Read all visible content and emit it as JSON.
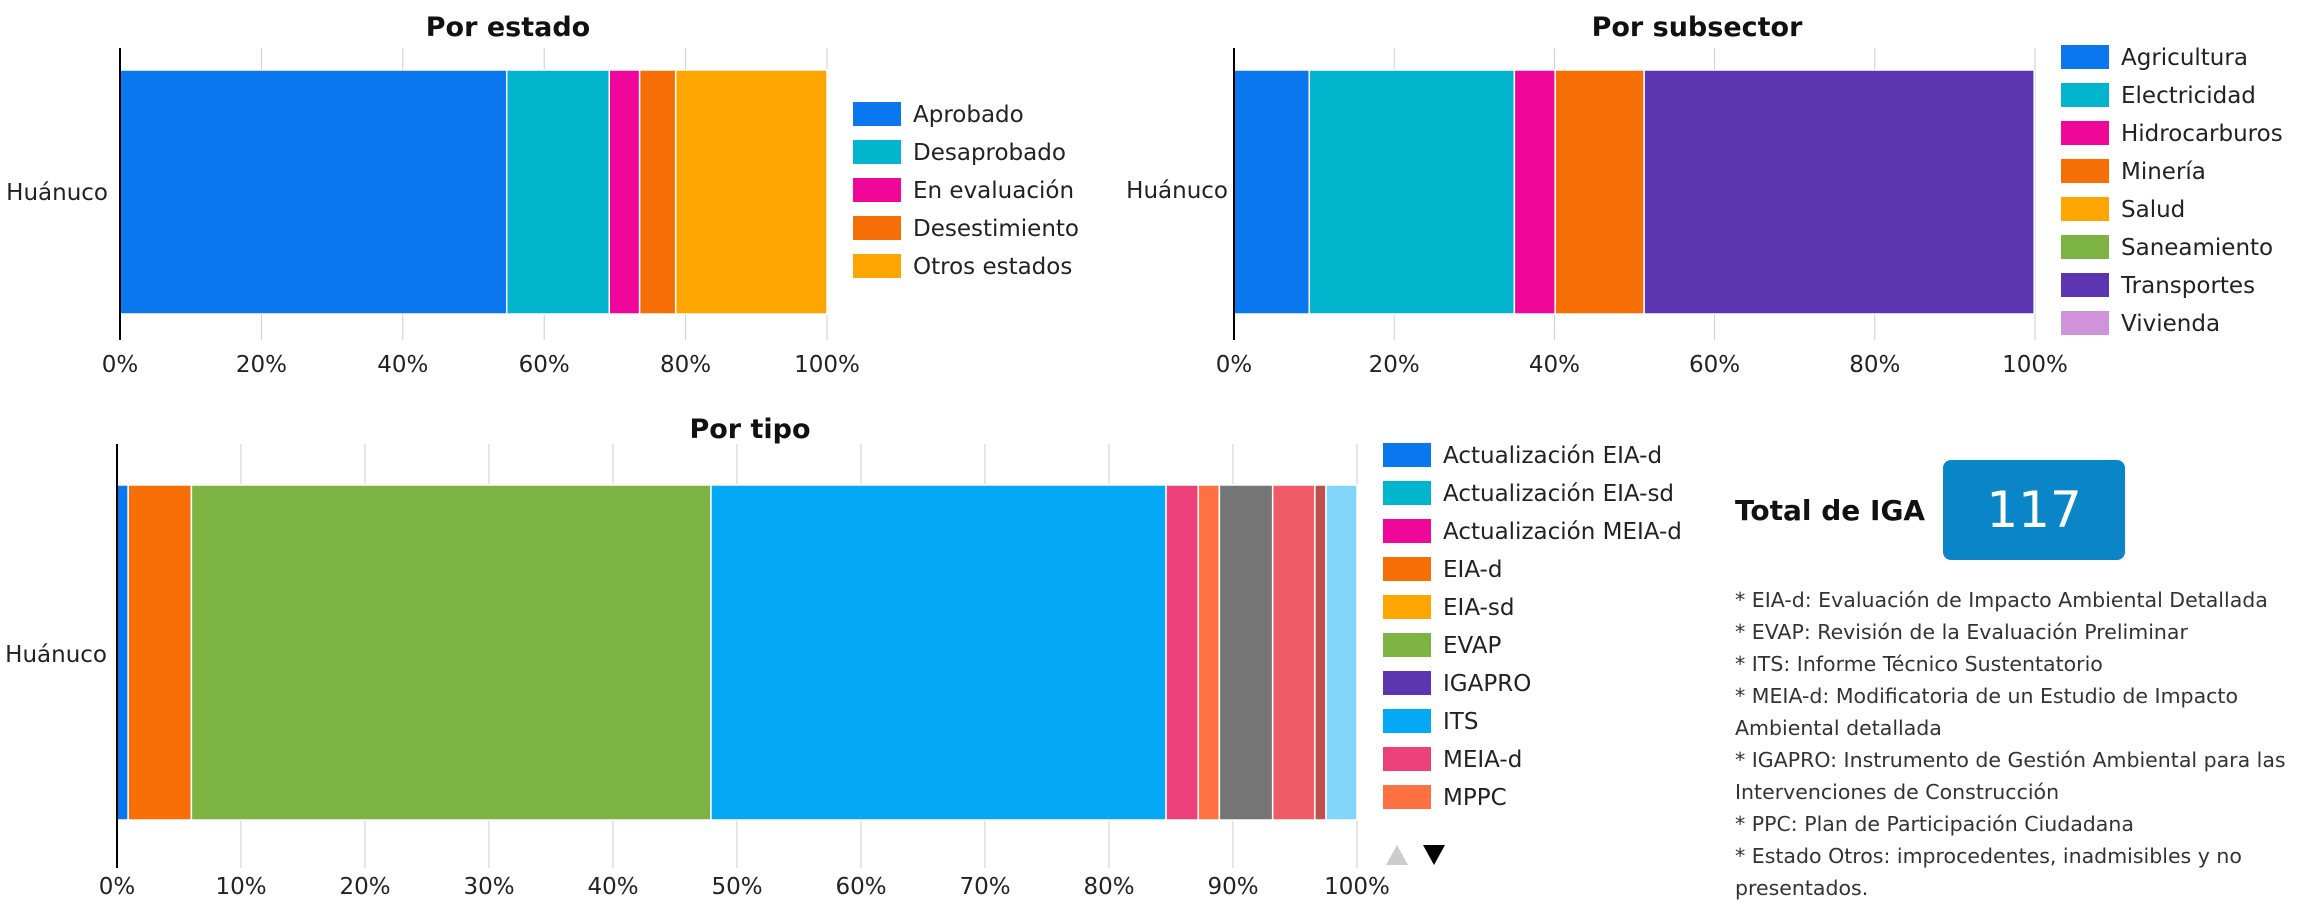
{
  "chart_data": [
    {
      "type": "bar",
      "stacked": "percent",
      "orientation": "horizontal",
      "title": "Por estado",
      "categories": [
        "Huánuco"
      ],
      "series": [
        {
          "name": "Aprobado",
          "color": "#0a77ee",
          "values": [
            54.7
          ]
        },
        {
          "name": "Desaprobado",
          "color": "#00b5cc",
          "values": [
            14.5
          ]
        },
        {
          "name": "En evaluación",
          "color": "#f0079a",
          "values": [
            4.3
          ]
        },
        {
          "name": "Desestimiento",
          "color": "#f56f06",
          "values": [
            5.1
          ]
        },
        {
          "name": "Otros estados",
          "color": "#ffa500",
          "values": [
            21.4
          ]
        }
      ],
      "xlim": [
        0,
        100
      ],
      "x_ticks": [
        "0%",
        "20%",
        "40%",
        "60%",
        "80%",
        "100%"
      ],
      "legend_position": "right",
      "grid": true
    },
    {
      "type": "bar",
      "stacked": "percent",
      "orientation": "horizontal",
      "title": "Por subsector",
      "categories": [
        "Huánuco"
      ],
      "series": [
        {
          "name": "Agricultura",
          "color": "#0a77ee",
          "values": [
            9.4
          ]
        },
        {
          "name": "Electricidad",
          "color": "#00b5cc",
          "values": [
            25.6
          ]
        },
        {
          "name": "Hidrocarburos",
          "color": "#f0079a",
          "values": [
            5.1
          ]
        },
        {
          "name": "Minería",
          "color": "#f56f06",
          "values": [
            11.1
          ]
        },
        {
          "name": "Salud",
          "color": "#ffa500",
          "values": [
            0
          ]
        },
        {
          "name": "Saneamiento",
          "color": "#7cb342",
          "values": [
            0
          ]
        },
        {
          "name": "Transportes",
          "color": "#5e35b1",
          "values": [
            48.7
          ]
        },
        {
          "name": "Vivienda",
          "color": "#ce93d8",
          "values": [
            0
          ]
        }
      ],
      "xlim": [
        0,
        100
      ],
      "x_ticks": [
        "0%",
        "20%",
        "40%",
        "60%",
        "80%",
        "100%"
      ],
      "legend_position": "right",
      "grid": true
    },
    {
      "type": "bar",
      "stacked": "percent",
      "orientation": "horizontal",
      "title": "Por tipo",
      "categories": [
        "Huánuco"
      ],
      "series": [
        {
          "name": "Actualización EIA-d",
          "color": "#0a77ee",
          "values": [
            0.9
          ]
        },
        {
          "name": "Actualización EIA-sd",
          "color": "#00b5cc",
          "values": [
            0
          ]
        },
        {
          "name": "Actualización MEIA-d",
          "color": "#f0079a",
          "values": [
            0
          ]
        },
        {
          "name": "EIA-d",
          "color": "#f56f06",
          "values": [
            5.1
          ]
        },
        {
          "name": "EIA-sd",
          "color": "#ffa500",
          "values": [
            0
          ]
        },
        {
          "name": "EVAP",
          "color": "#7cb342",
          "values": [
            41.9
          ]
        },
        {
          "name": "IGAPRO",
          "color": "#5e35b1",
          "values": [
            0
          ]
        },
        {
          "name": "ITS",
          "color": "#03a9f4",
          "values": [
            36.7
          ]
        },
        {
          "name": "MEIA-d",
          "color": "#ec407a",
          "values": [
            2.6
          ]
        },
        {
          "name": "MPPC",
          "color": "#ff7043",
          "values": [
            1.7
          ]
        },
        {
          "name": "",
          "color": "#757575",
          "values": [
            4.3
          ]
        },
        {
          "name": "",
          "color": "#ef5b67",
          "values": [
            3.4
          ]
        },
        {
          "name": "",
          "color": "#c0504d",
          "values": [
            0.9
          ]
        },
        {
          "name": "",
          "color": "#81d4fa",
          "values": [
            2.5
          ]
        }
      ],
      "xlim": [
        0,
        100
      ],
      "x_ticks": [
        "0%",
        "10%",
        "20%",
        "30%",
        "40%",
        "50%",
        "60%",
        "70%",
        "80%",
        "90%",
        "100%"
      ],
      "legend_position": "right",
      "legend_paged": true,
      "grid": true
    }
  ],
  "total": {
    "label": "Total de IGA",
    "value": "117"
  },
  "notes": [
    "* EIA-d: Evaluación de Impacto Ambiental Detallada",
    "* EVAP: Revisión de la Evaluación Preliminar",
    "* ITS: Informe Técnico Sustentatorio",
    "* MEIA-d: Modificatoria de un Estudio de Impacto Ambiental detallada",
    "* IGAPRO: Instrumento de Gestión Ambiental para las Intervenciones de Construcción",
    "* PPC: Plan de Participación Ciudadana",
    "* Estado Otros: improcedentes, inadmisibles y no presentados."
  ],
  "colors": {
    "grid": "#cccccc",
    "axis": "#000000",
    "total_box": "#0a86c8",
    "pager_active": "#000000",
    "pager_inactive": "#cccccc"
  }
}
